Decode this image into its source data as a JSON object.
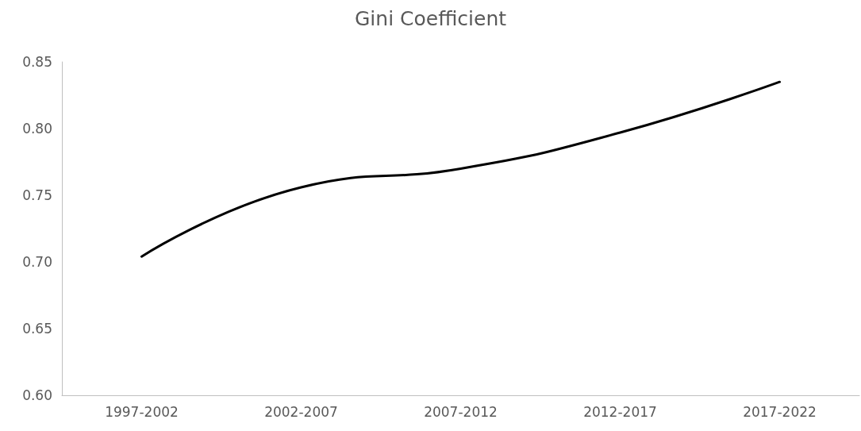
{
  "chart_data": {
    "type": "line",
    "title": "Gini Coefficient",
    "categories": [
      "1997-2002",
      "2002-2007",
      "2007-2012",
      "2012-2017",
      "2017-2022"
    ],
    "series": [
      {
        "color": "#000000",
        "values": [
          0.704,
          0.756,
          0.77,
          0.797,
          0.835
        ]
      }
    ],
    "ylim": [
      0.6,
      0.85
    ],
    "yticks": [
      {
        "value": 0.6,
        "label": "0.60"
      },
      {
        "value": 0.65,
        "label": "0.65"
      },
      {
        "value": 0.7,
        "label": "0.70"
      },
      {
        "value": 0.75,
        "label": "0.75"
      },
      {
        "value": 0.8,
        "label": "0.80"
      },
      {
        "value": 0.85,
        "label": "0.85"
      }
    ],
    "grid": false,
    "marker": "none",
    "line_style": "solid"
  }
}
